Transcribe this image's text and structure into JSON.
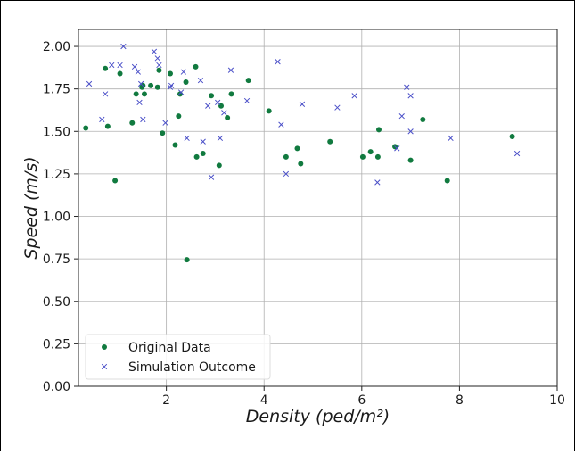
{
  "chart_data": {
    "type": "scatter",
    "title": "",
    "xlabel": "Density (ped/m²)",
    "ylabel": "Speed (m/s)",
    "xlim": [
      0.2,
      10
    ],
    "ylim": [
      0,
      2.1
    ],
    "xticks": [
      2,
      4,
      6,
      8,
      10
    ],
    "yticks": [
      0.0,
      0.25,
      0.5,
      0.75,
      1.0,
      1.25,
      1.5,
      1.75,
      2.0
    ],
    "xtick_labels": [
      "2",
      "4",
      "6",
      "8",
      "10"
    ],
    "ytick_labels": [
      "0.00",
      "0.25",
      "0.50",
      "0.75",
      "1.00",
      "1.25",
      "1.50",
      "1.75",
      "2.00"
    ],
    "grid": true,
    "legend_position": "bottom-left",
    "series": [
      {
        "name": "Original Data",
        "color": "#117a3f",
        "marker": "circle",
        "points": [
          [
            0.35,
            1.52
          ],
          [
            0.75,
            1.87
          ],
          [
            0.8,
            1.53
          ],
          [
            0.95,
            1.21
          ],
          [
            1.05,
            1.84
          ],
          [
            1.3,
            1.55
          ],
          [
            1.38,
            1.72
          ],
          [
            1.5,
            1.76
          ],
          [
            1.52,
            1.77
          ],
          [
            1.55,
            1.72
          ],
          [
            1.68,
            1.77
          ],
          [
            1.82,
            1.76
          ],
          [
            1.85,
            1.86
          ],
          [
            1.92,
            1.49
          ],
          [
            2.08,
            1.84
          ],
          [
            2.18,
            1.42
          ],
          [
            2.25,
            1.59
          ],
          [
            2.28,
            1.72
          ],
          [
            2.4,
            1.79
          ],
          [
            2.42,
            0.745
          ],
          [
            2.6,
            1.88
          ],
          [
            2.62,
            1.35
          ],
          [
            2.75,
            1.37
          ],
          [
            2.92,
            1.71
          ],
          [
            3.08,
            1.3
          ],
          [
            3.12,
            1.65
          ],
          [
            3.25,
            1.58
          ],
          [
            3.33,
            1.72
          ],
          [
            3.68,
            1.8
          ],
          [
            4.1,
            1.62
          ],
          [
            4.45,
            1.35
          ],
          [
            4.68,
            1.4
          ],
          [
            4.75,
            1.31
          ],
          [
            5.35,
            1.44
          ],
          [
            6.02,
            1.35
          ],
          [
            6.18,
            1.38
          ],
          [
            6.33,
            1.35
          ],
          [
            6.35,
            1.51
          ],
          [
            6.68,
            1.41
          ],
          [
            7.0,
            1.33
          ],
          [
            7.25,
            1.57
          ],
          [
            7.75,
            1.21
          ],
          [
            9.08,
            1.47
          ]
        ]
      },
      {
        "name": "Simulation Outcome",
        "color": "#4a4fc8",
        "marker": "x",
        "points": [
          [
            0.42,
            1.78
          ],
          [
            0.68,
            1.57
          ],
          [
            0.75,
            1.72
          ],
          [
            0.88,
            1.89
          ],
          [
            1.05,
            1.89
          ],
          [
            1.12,
            2.0
          ],
          [
            1.35,
            1.88
          ],
          [
            1.42,
            1.85
          ],
          [
            1.45,
            1.67
          ],
          [
            1.48,
            1.78
          ],
          [
            1.52,
            1.57
          ],
          [
            1.75,
            1.97
          ],
          [
            1.82,
            1.93
          ],
          [
            1.85,
            1.89
          ],
          [
            1.98,
            1.55
          ],
          [
            2.08,
            1.76
          ],
          [
            2.1,
            1.77
          ],
          [
            2.3,
            1.73
          ],
          [
            2.35,
            1.85
          ],
          [
            2.42,
            1.46
          ],
          [
            2.7,
            1.8
          ],
          [
            2.75,
            1.44
          ],
          [
            2.85,
            1.65
          ],
          [
            2.92,
            1.23
          ],
          [
            3.05,
            1.67
          ],
          [
            3.1,
            1.46
          ],
          [
            3.18,
            1.61
          ],
          [
            3.32,
            1.86
          ],
          [
            3.65,
            1.68
          ],
          [
            4.28,
            1.91
          ],
          [
            4.35,
            1.54
          ],
          [
            4.45,
            1.25
          ],
          [
            4.78,
            1.66
          ],
          [
            5.5,
            1.64
          ],
          [
            5.85,
            1.71
          ],
          [
            6.32,
            1.2
          ],
          [
            6.72,
            1.4
          ],
          [
            6.82,
            1.59
          ],
          [
            6.92,
            1.76
          ],
          [
            7.0,
            1.71
          ],
          [
            7.0,
            1.5
          ],
          [
            7.82,
            1.46
          ],
          [
            9.18,
            1.37
          ]
        ]
      }
    ]
  }
}
